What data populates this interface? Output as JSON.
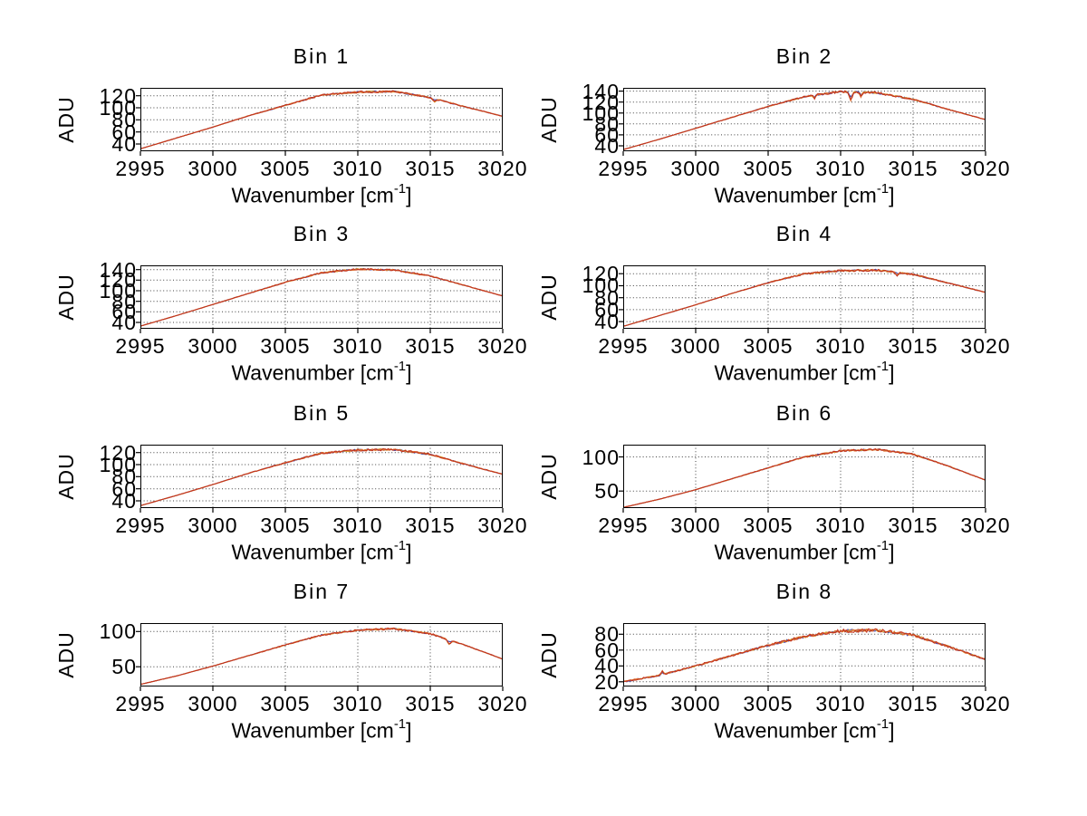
{
  "figure": {
    "background": "#ffffff",
    "axis_color": "#000000",
    "grid_style": "dotted",
    "text_color": "#000000"
  },
  "palette": {
    "series_colors": [
      "#4444aa",
      "#d8a030",
      "#e07030",
      "#c23420"
    ],
    "note": "multiple nearly-overlapping spectral traces per panel (blue under yellow/orange/red)"
  },
  "chart_data": [
    {
      "type": "line",
      "title": "Bin 1",
      "ylabel": "ADU",
      "xlabel_pre": "Wavenumber [cm",
      "xlabel_sup": "-1",
      "xlabel_post": "]",
      "xlim": [
        2995,
        3020
      ],
      "xticks": [
        2995,
        3000,
        3005,
        3010,
        3015,
        3020
      ],
      "ylim": [
        28,
        133
      ],
      "yticks": [
        40,
        60,
        80,
        100,
        120
      ],
      "x": [
        2995,
        2997.5,
        3000,
        3002.5,
        3005,
        3007.5,
        3010,
        3012.5,
        3015,
        3017.5,
        3020
      ],
      "values": [
        32,
        50,
        68,
        87,
        104,
        121,
        126,
        127,
        117,
        101,
        86
      ],
      "noise_amplitude": 1.8,
      "flank_noise": 0.1,
      "dips": [
        {
          "x": 3015.3,
          "depth": 5,
          "width": 0.15
        }
      ]
    },
    {
      "type": "line",
      "title": "Bin 2",
      "ylabel": "ADU",
      "xlabel_pre": "Wavenumber [cm",
      "xlabel_sup": "-1",
      "xlabel_post": "]",
      "xlim": [
        2995,
        3020
      ],
      "xticks": [
        2995,
        3000,
        3005,
        3010,
        3015,
        3020
      ],
      "ylim": [
        30,
        146
      ],
      "yticks": [
        40,
        60,
        80,
        100,
        120,
        140
      ],
      "x": [
        2995,
        2997.5,
        3000,
        3002.5,
        3005,
        3007.5,
        3010,
        3012.5,
        3015,
        3017.5,
        3020
      ],
      "values": [
        33,
        52,
        72,
        92,
        112,
        130,
        139,
        137,
        125,
        106,
        88
      ],
      "noise_amplitude": 2.0,
      "flank_noise": 0.08,
      "dips": [
        {
          "x": 3008.2,
          "depth": 6,
          "width": 0.1
        },
        {
          "x": 3010.7,
          "depth": 15,
          "width": 0.13
        },
        {
          "x": 3011.4,
          "depth": 8,
          "width": 0.1
        }
      ]
    },
    {
      "type": "line",
      "title": "Bin 3",
      "ylabel": "ADU",
      "xlabel_pre": "Wavenumber [cm",
      "xlabel_sup": "-1",
      "xlabel_post": "]",
      "xlim": [
        2995,
        3020
      ],
      "xticks": [
        2995,
        3000,
        3005,
        3010,
        3015,
        3020
      ],
      "ylim": [
        28,
        148
      ],
      "yticks": [
        40,
        60,
        80,
        100,
        120,
        140
      ],
      "x": [
        2995,
        2997.5,
        3000,
        3002.5,
        3005,
        3007.5,
        3010,
        3012.5,
        3015,
        3017.5,
        3020
      ],
      "values": [
        33,
        53,
        74,
        95,
        116,
        134,
        141,
        139,
        128,
        109,
        90
      ],
      "noise_amplitude": 1.8,
      "flank_noise": 0.08,
      "dips": []
    },
    {
      "type": "line",
      "title": "Bin 4",
      "ylabel": "ADU",
      "xlabel_pre": "Wavenumber [cm",
      "xlabel_sup": "-1",
      "xlabel_post": "]",
      "xlim": [
        2995,
        3020
      ],
      "xticks": [
        2995,
        3000,
        3005,
        3010,
        3015,
        3020
      ],
      "ylim": [
        28,
        134
      ],
      "yticks": [
        40,
        60,
        80,
        100,
        120
      ],
      "x": [
        2995,
        2997.5,
        3000,
        3002.5,
        3005,
        3007.5,
        3010,
        3012.5,
        3015,
        3017.5,
        3020
      ],
      "values": [
        32,
        50,
        68,
        87,
        105,
        120,
        125,
        126,
        119,
        104,
        89
      ],
      "noise_amplitude": 1.8,
      "flank_noise": 0.1,
      "dips": [
        {
          "x": 3013.9,
          "depth": 5,
          "width": 0.12
        }
      ]
    },
    {
      "type": "line",
      "title": "Bin 5",
      "ylabel": "ADU",
      "xlabel_pre": "Wavenumber [cm",
      "xlabel_sup": "-1",
      "xlabel_post": "]",
      "xlim": [
        2995,
        3020
      ],
      "xticks": [
        2995,
        3000,
        3005,
        3010,
        3015,
        3020
      ],
      "ylim": [
        28,
        133
      ],
      "yticks": [
        40,
        60,
        80,
        100,
        120
      ],
      "x": [
        2995,
        2997.5,
        3000,
        3002.5,
        3005,
        3007.5,
        3010,
        3012.5,
        3015,
        3017.5,
        3020
      ],
      "values": [
        32,
        49,
        67,
        86,
        103,
        119,
        124,
        125,
        117,
        100,
        84
      ],
      "noise_amplitude": 1.8,
      "flank_noise": 0.1,
      "dips": []
    },
    {
      "type": "line",
      "title": "Bin 6",
      "ylabel": "ADU",
      "xlabel_pre": "Wavenumber [cm",
      "xlabel_sup": "-1",
      "xlabel_post": "]",
      "xlim": [
        2995,
        3020
      ],
      "xticks": [
        2995,
        3000,
        3005,
        3010,
        3015,
        3020
      ],
      "ylim": [
        25,
        118
      ],
      "yticks": [
        50,
        100
      ],
      "x": [
        2995,
        2997.5,
        3000,
        3002.5,
        3005,
        3007.5,
        3010,
        3012.5,
        3015,
        3017.5,
        3020
      ],
      "values": [
        26,
        38,
        52,
        68,
        84,
        100,
        109,
        111,
        104,
        86,
        66
      ],
      "noise_amplitude": 1.6,
      "flank_noise": 0.12,
      "dips": []
    },
    {
      "type": "line",
      "title": "Bin 7",
      "ylabel": "ADU",
      "xlabel_pre": "Wavenumber [cm",
      "xlabel_sup": "-1",
      "xlabel_post": "]",
      "xlim": [
        2995,
        3020
      ],
      "xticks": [
        2995,
        3000,
        3005,
        3010,
        3015,
        3020
      ],
      "ylim": [
        22,
        112
      ],
      "yticks": [
        50,
        100
      ],
      "x": [
        2995,
        2997.5,
        3000,
        3002.5,
        3005,
        3007.5,
        3010,
        3012.5,
        3015,
        3017.5,
        3020
      ],
      "values": [
        25,
        37,
        51,
        66,
        81,
        95,
        102,
        104,
        97,
        80,
        61
      ],
      "noise_amplitude": 1.5,
      "flank_noise": 0.12,
      "dips": [
        {
          "x": 3016.3,
          "depth": 6,
          "width": 0.15
        }
      ]
    },
    {
      "type": "line",
      "title": "Bin 8",
      "ylabel": "ADU",
      "xlabel_pre": "Wavenumber [cm",
      "xlabel_sup": "-1",
      "xlabel_post": "]",
      "xlim": [
        2995,
        3020
      ],
      "xticks": [
        2995,
        3000,
        3005,
        3010,
        3015,
        3020
      ],
      "ylim": [
        14,
        94
      ],
      "yticks": [
        20,
        40,
        60,
        80
      ],
      "x": [
        2995,
        2997.5,
        3000,
        3002.5,
        3005,
        3007.5,
        3010,
        3012.5,
        3015,
        3017.5,
        3020
      ],
      "values": [
        20,
        28,
        40,
        53,
        66,
        77,
        84,
        85,
        79,
        64,
        48
      ],
      "noise_amplitude": 2.2,
      "flank_noise": 0.45,
      "dips": [
        {
          "x": 2997.7,
          "depth": -5,
          "width": 0.1
        }
      ]
    }
  ]
}
